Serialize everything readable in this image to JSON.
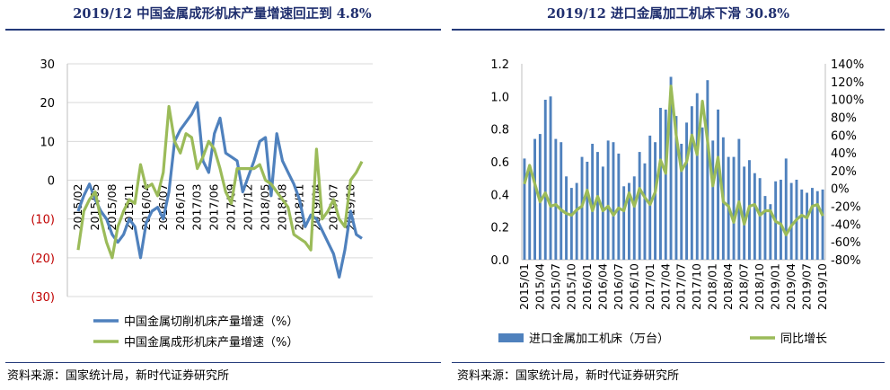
{
  "left_panel": {
    "title": "2019/12 中国金属成形机床产量增速回正到 4.8%",
    "source": "资料来源：国家统计局，新时代证券研究所"
  },
  "right_panel": {
    "title": "2019/12 进口金属加工机床下滑 30.8%",
    "source": "资料来源：国家统计局，新时代证券研究所"
  },
  "colors": {
    "blue": "#4f81bd",
    "green": "#9bbb59",
    "title": "#1f2e6e",
    "rule": "#243a7a"
  },
  "chart_data": [
    {
      "type": "line",
      "title": "",
      "ylim": [
        -30,
        30
      ],
      "yticks": [
        30,
        20,
        10,
        0,
        -10,
        -20,
        -30
      ],
      "ytick_labels": [
        "30",
        "20",
        "10",
        "0",
        "(10)",
        "(20)",
        "(30)"
      ],
      "xtick_labels": [
        "2015/02",
        "2015/05",
        "2015/08",
        "2015/11",
        "2016/04",
        "2016/07",
        "2016/10",
        "2017/03",
        "2017/06",
        "2017/09",
        "2017/12",
        "2018/05",
        "2018/08",
        "2018/11",
        "2019/04",
        "2019/07",
        "2019/10"
      ],
      "x": [
        "2015/02",
        "2015/03",
        "2015/04",
        "2015/05",
        "2015/06",
        "2015/07",
        "2015/08",
        "2015/09",
        "2015/10",
        "2015/11",
        "2015/12",
        "2016/03",
        "2016/04",
        "2016/05",
        "2016/06",
        "2016/07",
        "2016/08",
        "2016/09",
        "2016/10",
        "2016/11",
        "2016/12",
        "2017/03",
        "2017/04",
        "2017/05",
        "2017/06",
        "2017/07",
        "2017/08",
        "2017/09",
        "2017/10",
        "2017/11",
        "2017/12",
        "2018/03",
        "2018/04",
        "2018/05",
        "2018/06",
        "2018/07",
        "2018/08",
        "2018/09",
        "2018/10",
        "2018/11",
        "2018/12",
        "2019/03",
        "2019/04",
        "2019/05",
        "2019/06",
        "2019/07",
        "2019/08",
        "2019/09",
        "2019/10",
        "2019/11",
        "2019/12"
      ],
      "series": [
        {
          "name": "中国金属切削机床产量增速（%）",
          "color": "#4f81bd",
          "values": [
            -8,
            -4,
            -1,
            -5,
            -8,
            -10,
            -14,
            -16,
            -14,
            -10,
            -12,
            -20,
            -11,
            -8,
            -7,
            -10,
            -3,
            10,
            13,
            15,
            17,
            20,
            5,
            2,
            12,
            16,
            7,
            6,
            5,
            -3,
            1,
            5,
            10,
            11,
            -4,
            12,
            5,
            2,
            -1,
            -5,
            -12,
            -9,
            -10,
            -13,
            -16,
            -19,
            -25,
            -18,
            -8,
            -14,
            -15
          ]
        },
        {
          "name": "中国金属成形机床产量增速（%）",
          "color": "#9bbb59",
          "values": [
            -18,
            -8,
            -5,
            -3,
            -10,
            -16,
            -20,
            -12,
            -8,
            -5,
            -6,
            4,
            -2,
            -1,
            -4,
            2,
            19,
            10,
            7,
            12,
            11,
            3,
            6,
            10,
            8,
            3,
            -3,
            -6,
            3,
            3,
            3,
            3,
            4,
            0,
            -1,
            -3,
            -5,
            -7,
            -14,
            -15,
            -16,
            -18,
            8,
            -10,
            -8,
            -5,
            -10,
            -12,
            0,
            2,
            4.8
          ]
        }
      ]
    },
    {
      "type": "bar+line",
      "title": "",
      "ylim_left": [
        0,
        1.2
      ],
      "yticks_left": [
        "0.0",
        "0.2",
        "0.4",
        "0.6",
        "0.8",
        "1.0",
        "1.2"
      ],
      "ylim_right": [
        -80,
        140
      ],
      "yticks_right": [
        "-80%",
        "-60%",
        "-40%",
        "-20%",
        "0%",
        "20%",
        "40%",
        "60%",
        "80%",
        "100%",
        "120%",
        "140%"
      ],
      "xtick_labels": [
        "2015/01",
        "2015/04",
        "2015/07",
        "2015/10",
        "2016/01",
        "2016/04",
        "2016/07",
        "2016/10",
        "2017/01",
        "2017/04",
        "2017/07",
        "2017/10",
        "2018/01",
        "2018/04",
        "2018/07",
        "2018/10",
        "2019/01",
        "2019/04",
        "2019/07",
        "2019/10"
      ],
      "series": [
        {
          "name": "进口金属加工机床（万台）",
          "type": "bar",
          "axis": "left",
          "color": "#4f81bd",
          "values": [
            0.62,
            0.57,
            0.74,
            0.77,
            0.98,
            1.0,
            0.74,
            0.72,
            0.51,
            0.44,
            0.47,
            0.63,
            0.6,
            0.71,
            0.66,
            0.57,
            0.73,
            0.72,
            0.65,
            0.45,
            0.47,
            0.51,
            0.66,
            0.59,
            0.76,
            0.72,
            0.93,
            0.92,
            1.12,
            0.88,
            0.71,
            0.84,
            0.94,
            1.02,
            0.81,
            1.1,
            0.73,
            0.92,
            0.75,
            0.63,
            0.63,
            0.74,
            0.57,
            0.61,
            0.53,
            0.5,
            0.39,
            0.34,
            0.48,
            0.49,
            0.62,
            0.47,
            0.49,
            0.43,
            0.41,
            0.44,
            0.42,
            0.43
          ]
        },
        {
          "name": "同比增长",
          "type": "line",
          "axis": "right",
          "color": "#9bbb59",
          "values": [
            5,
            26,
            5,
            -15,
            -5,
            -20,
            -18,
            -24,
            -28,
            -30,
            -24,
            -20,
            -2,
            -25,
            -9,
            -25,
            -20,
            -30,
            -22,
            -25,
            -5,
            -20,
            0,
            -10,
            -18,
            -4,
            32,
            17,
            115,
            60,
            20,
            30,
            60,
            38,
            98,
            53,
            3,
            35,
            -15,
            -20,
            -38,
            -15,
            -40,
            -20,
            -18,
            -30,
            -25,
            -25,
            -37,
            -40,
            -52,
            -42,
            -35,
            -30,
            -33,
            -20,
            -18,
            -31
          ]
        }
      ]
    }
  ]
}
